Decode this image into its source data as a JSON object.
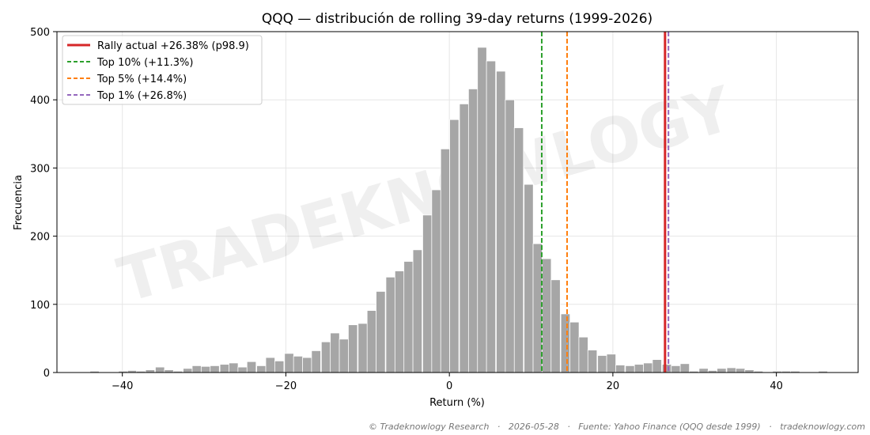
{
  "chart_data": {
    "type": "bar",
    "title": "QQQ — distribución de rolling 39-day returns (1999-2026)",
    "xlabel": "Return (%)",
    "ylabel": "Frecuencia",
    "xlim": [
      -48,
      50
    ],
    "ylim": [
      0,
      500
    ],
    "x_ticks": [
      -40,
      -20,
      0,
      20,
      40
    ],
    "y_ticks": [
      0,
      100,
      200,
      300,
      400,
      500
    ],
    "grid": true,
    "legend_position": "top-left",
    "bar_color": "#a6a6a6",
    "bin_width": 1.12,
    "bin_centers": [
      -43.4,
      -39.9,
      -38.8,
      -37.7,
      -36.6,
      -35.4,
      -34.3,
      -33.2,
      -32.0,
      -30.9,
      -29.8,
      -28.7,
      -27.5,
      -26.4,
      -25.3,
      -24.2,
      -23.0,
      -21.9,
      -20.8,
      -19.6,
      -18.5,
      -17.4,
      -16.3,
      -15.1,
      -14.0,
      -12.9,
      -11.8,
      -10.6,
      -9.5,
      -8.4,
      -7.2,
      -6.1,
      -5.0,
      -3.9,
      -2.7,
      -1.6,
      -0.5,
      0.6,
      1.8,
      2.9,
      4.0,
      5.1,
      6.3,
      7.4,
      8.5,
      9.7,
      10.8,
      11.9,
      13.0,
      14.2,
      15.3,
      16.4,
      17.5,
      18.7,
      19.8,
      20.9,
      22.1,
      23.2,
      24.3,
      25.4,
      26.6,
      27.7,
      28.8,
      29.9,
      31.1,
      32.2,
      33.3,
      34.5,
      35.6,
      36.7,
      37.8,
      40.1,
      41.2,
      42.3,
      45.7
    ],
    "values": [
      2,
      2,
      3,
      2,
      4,
      8,
      4,
      2,
      6,
      10,
      9,
      10,
      12,
      14,
      8,
      16,
      10,
      22,
      17,
      28,
      24,
      22,
      32,
      45,
      58,
      49,
      70,
      72,
      91,
      119,
      140,
      149,
      163,
      180,
      231,
      268,
      328,
      371,
      394,
      416,
      477,
      457,
      442,
      400,
      359,
      276,
      189,
      167,
      136,
      86,
      74,
      52,
      33,
      25,
      27,
      11,
      10,
      12,
      14,
      19,
      12,
      10,
      13,
      2,
      6,
      3,
      6,
      7,
      6,
      4,
      2,
      2,
      2,
      2,
      2
    ],
    "reference_lines": [
      {
        "label": "Rally actual +26.38% (p98.9)",
        "x": 26.38,
        "color": "#d62728",
        "style": "solid"
      },
      {
        "label": "Top 10% (+11.3%)",
        "x": 11.3,
        "color": "#2ca02c",
        "style": "dashed"
      },
      {
        "label": "Top 5% (+14.4%)",
        "x": 14.4,
        "color": "#ff7f0e",
        "style": "dashed"
      },
      {
        "label": "Top 1% (+26.8%)",
        "x": 26.8,
        "color": "#9467bd",
        "style": "dashed"
      }
    ]
  },
  "watermark": "TRADEKNOWLOGY",
  "footer": "© Tradeknowlogy Research   ·   2026-05-28   ·   Fuente: Yahoo Finance (QQQ desde 1999)   ·   tradeknowlogy.com"
}
